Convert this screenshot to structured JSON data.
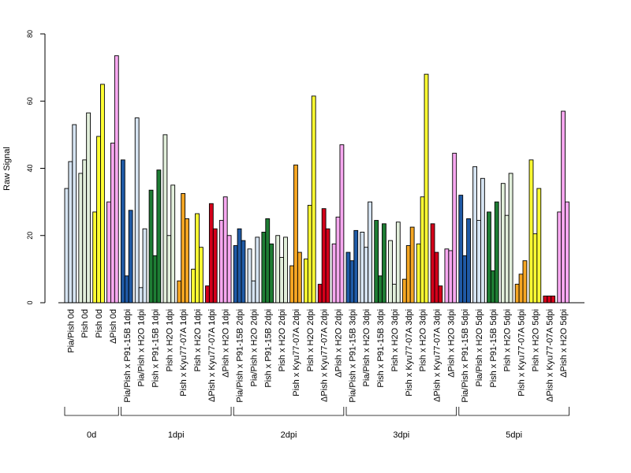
{
  "chart_data": {
    "type": "bar",
    "ylabel": "Raw Signal",
    "xlabel": "",
    "title": "",
    "ylim": [
      0,
      80
    ],
    "yticks": [
      0,
      20,
      40,
      60,
      80
    ],
    "grid": false,
    "colors": {
      "Pia/Pish": "#d6e4f2",
      "Pish": "#e2efdb",
      "Pish_yellow": "#ffff33",
      "dPish": "#f7a8f0",
      "P91-15B_blue": "#1f5aa6",
      "P91-15B_green": "#1e7d34",
      "Kyu77-07A_orange": "#f5a623",
      "Kyu77-07A_red": "#d4001a"
    },
    "groups": [
      {
        "label": "0d",
        "categories": [
          {
            "label": "Pia/Pish 0d",
            "color": "#d6e4f2",
            "values": [
              34,
              42,
              53
            ]
          },
          {
            "label": "Pish 0d",
            "color": "#e2efdb",
            "values": [
              38.5,
              42.5,
              56.5
            ]
          },
          {
            "label": "Pish 0d",
            "color": "#ffff33",
            "values": [
              27,
              49.5,
              65
            ]
          },
          {
            "label": "ΔPish 0d",
            "color": "#f7a8f0",
            "values": [
              30,
              47.5,
              73.5
            ]
          }
        ]
      },
      {
        "label": "1dpi",
        "categories": [
          {
            "label": "Pia/Pish x P91-15B 1dpi",
            "color": "#1f5aa6",
            "values": [
              42.5,
              8,
              27.5
            ]
          },
          {
            "label": "Pia/Pish x H2O 1dpi",
            "color": "#d6e4f2",
            "values": [
              55,
              4.5,
              22
            ]
          },
          {
            "label": "Pish x P91-15B 1dpi",
            "color": "#1e7d34",
            "values": [
              33.5,
              14,
              39.5
            ]
          },
          {
            "label": "Pish x H2O 1dpi",
            "color": "#e2efdb",
            "values": [
              50,
              20,
              35
            ]
          },
          {
            "label": "Pish x Kyu77-07A 1dpi",
            "color": "#f5a623",
            "values": [
              6.5,
              32.5,
              25
            ]
          },
          {
            "label": "Pish x H2O 1dpi",
            "color": "#ffff33",
            "values": [
              10,
              26.5,
              16.5
            ]
          },
          {
            "label": "ΔPish x Kyu77-07A 1dpi",
            "color": "#d4001a",
            "values": [
              5,
              29.5,
              22
            ]
          },
          {
            "label": "ΔPish x H2O 1dpi",
            "color": "#f7a8f0",
            "values": [
              24.5,
              31.5,
              20
            ]
          }
        ]
      },
      {
        "label": "2dpi",
        "categories": [
          {
            "label": "Pia/Pish x P91-15B 2dpi",
            "color": "#1f5aa6",
            "values": [
              17,
              22,
              18.5
            ]
          },
          {
            "label": "Pia/Pish x H2O 2dpi",
            "color": "#d6e4f2",
            "values": [
              16,
              6.5,
              19.5
            ]
          },
          {
            "label": "Pish x P91-15B 2dpi",
            "color": "#1e7d34",
            "values": [
              21,
              25,
              17.5
            ]
          },
          {
            "label": "Pish x H2O 2dpi",
            "color": "#e2efdb",
            "values": [
              20,
              13.5,
              19.5
            ]
          },
          {
            "label": "Pish x Kyu77-07A 2dpi",
            "color": "#f5a623",
            "values": [
              11,
              41,
              15
            ]
          },
          {
            "label": "Pish x H2O 2dpi",
            "color": "#ffff33",
            "values": [
              13,
              29,
              61.5
            ]
          },
          {
            "label": "ΔPish x Kyu77-07A 2dpi",
            "color": "#d4001a",
            "values": [
              5.5,
              28,
              22
            ]
          },
          {
            "label": "ΔPish x H2O 2dpi",
            "color": "#f7a8f0",
            "values": [
              17.5,
              25.5,
              47
            ]
          }
        ]
      },
      {
        "label": "3dpi",
        "categories": [
          {
            "label": "Pia/Pish x P91-15B 3dpi",
            "color": "#1f5aa6",
            "values": [
              15,
              12.5,
              21.5
            ]
          },
          {
            "label": "Pia/Pish x H2O 3dpi",
            "color": "#d6e4f2",
            "values": [
              21,
              16.5,
              30
            ]
          },
          {
            "label": "Pish x P91-15B 3dpi",
            "color": "#1e7d34",
            "values": [
              24.5,
              8,
              23.5
            ]
          },
          {
            "label": "Pish x H2O 3dpi",
            "color": "#e2efdb",
            "values": [
              18.5,
              5.5,
              24
            ]
          },
          {
            "label": "Pish x Kyu77-07A 3dpi",
            "color": "#f5a623",
            "values": [
              7,
              17,
              22.5
            ]
          },
          {
            "label": "Pish x H2O 3dpi",
            "color": "#ffff33",
            "values": [
              17.5,
              31.5,
              68
            ]
          },
          {
            "label": "ΔPish x Kyu77-07A 3dpi",
            "color": "#d4001a",
            "values": [
              23.5,
              15,
              5
            ]
          },
          {
            "label": "ΔPish x H2O 3dpi",
            "color": "#f7a8f0",
            "values": [
              16,
              15.5,
              44.5
            ]
          }
        ]
      },
      {
        "label": "5dpi",
        "categories": [
          {
            "label": "Pia/Pish x P91-15B 5dpi",
            "color": "#1f5aa6",
            "values": [
              32,
              14,
              25
            ]
          },
          {
            "label": "Pia/Pish x H2O 5dpi",
            "color": "#d6e4f2",
            "values": [
              40.5,
              24.5,
              37
            ]
          },
          {
            "label": "Pish x P91-15B 5dpi",
            "color": "#1e7d34",
            "values": [
              27,
              9.5,
              30
            ]
          },
          {
            "label": "Pish x H2O 5dpi",
            "color": "#e2efdb",
            "values": [
              35.5,
              26,
              38.5
            ]
          },
          {
            "label": "Pish x Kyu77-07A 5dpi",
            "color": "#f5a623",
            "values": [
              5.5,
              8.5,
              12.5
            ]
          },
          {
            "label": "Pish x H2O 5dpi",
            "color": "#ffff33",
            "values": [
              42.5,
              20.5,
              34
            ]
          },
          {
            "label": "ΔPish x Kyu77-07A 5dpi",
            "color": "#d4001a",
            "values": [
              2,
              2,
              2
            ]
          },
          {
            "label": "ΔPish x H2O 5dpi",
            "color": "#f7a8f0",
            "values": [
              27,
              57,
              30
            ]
          }
        ]
      }
    ]
  }
}
